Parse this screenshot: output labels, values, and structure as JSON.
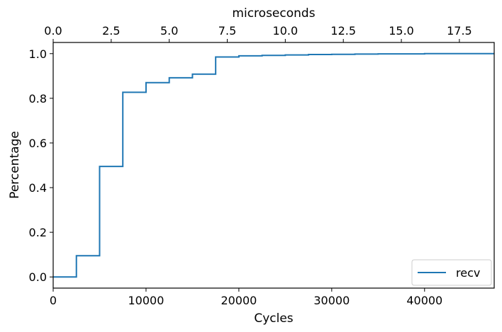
{
  "chart_data": {
    "type": "line",
    "step": true,
    "title": "",
    "xlabel": "Cycles",
    "ylabel": "Percentage",
    "top_xlabel": "microseconds",
    "xlim": [
      0,
      47500
    ],
    "ylim": [
      -0.05,
      1.05
    ],
    "top_xlim": [
      0,
      19
    ],
    "x_ticks": [
      0,
      10000,
      20000,
      30000,
      40000
    ],
    "x_tick_labels": [
      "0",
      "10000",
      "20000",
      "30000",
      "40000"
    ],
    "y_ticks": [
      0.0,
      0.2,
      0.4,
      0.6,
      0.8,
      1.0
    ],
    "y_tick_labels": [
      "0.0",
      "0.2",
      "0.4",
      "0.6",
      "0.8",
      "1.0"
    ],
    "top_x_ticks": [
      0,
      2.5,
      5,
      7.5,
      10,
      12.5,
      15,
      17.5
    ],
    "top_x_tick_labels": [
      "0.0",
      "2.5",
      "5.0",
      "7.5",
      "10.0",
      "12.5",
      "15.0",
      "17.5"
    ],
    "grid": false,
    "legend_position": "bottom-right",
    "series": [
      {
        "name": "recv",
        "color": "#1f77b4",
        "x": [
          0,
          2500,
          5000,
          7500,
          10000,
          12500,
          15000,
          17500,
          20000,
          22500,
          25000,
          27500,
          30000,
          32500,
          35000,
          40000,
          47500
        ],
        "y": [
          0.0,
          0.095,
          0.495,
          0.827,
          0.87,
          0.892,
          0.908,
          0.985,
          0.99,
          0.992,
          0.994,
          0.996,
          0.997,
          0.998,
          0.999,
          1.0,
          1.0
        ]
      }
    ]
  }
}
